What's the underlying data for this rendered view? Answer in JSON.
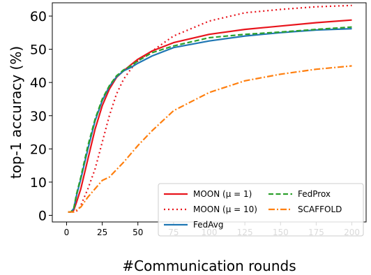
{
  "chart_data": {
    "type": "line",
    "xlabel": "#Communication rounds",
    "ylabel": "top-1 accuracy (%)",
    "xlim": [
      -10,
      210
    ],
    "ylim": [
      -2,
      64
    ],
    "xticks": [
      0,
      25,
      50,
      75,
      100,
      125,
      150,
      175,
      200
    ],
    "yticks": [
      0,
      10,
      20,
      30,
      40,
      50,
      60
    ],
    "legend_position": "lower-right",
    "grid": false,
    "series": [
      {
        "name": "MOON (μ = 1)",
        "color": "#e8141c",
        "style": "solid",
        "x": [
          1,
          3,
          5,
          7,
          10,
          15,
          20,
          25,
          30,
          35,
          40,
          45,
          50,
          60,
          75,
          100,
          125,
          150,
          175,
          200
        ],
        "y": [
          1,
          1,
          1.5,
          4,
          8,
          17,
          26,
          33,
          38,
          41.5,
          43.5,
          45.3,
          47,
          49.5,
          52,
          54.5,
          56,
          57,
          58,
          58.8
        ]
      },
      {
        "name": "MOON (μ = 10)",
        "color": "#e8141c",
        "style": "dotted",
        "x": [
          1,
          5,
          8,
          10,
          15,
          20,
          25,
          30,
          35,
          40,
          45,
          50,
          60,
          75,
          100,
          125,
          150,
          175,
          200
        ],
        "y": [
          1,
          1,
          1.5,
          3,
          8,
          14,
          22,
          30,
          36.5,
          41,
          44,
          46.5,
          49.5,
          54,
          58.5,
          61,
          62,
          62.8,
          63.2
        ]
      },
      {
        "name": "FedAvg",
        "color": "#1f77b4",
        "style": "solid",
        "x": [
          1,
          3,
          5,
          7,
          10,
          15,
          20,
          25,
          30,
          35,
          40,
          45,
          50,
          60,
          75,
          100,
          125,
          150,
          175,
          200
        ],
        "y": [
          1,
          1,
          2,
          6,
          11,
          20,
          28.5,
          34.5,
          38.8,
          41.7,
          43.5,
          44.5,
          45.8,
          48,
          50.5,
          52.5,
          54,
          55,
          55.8,
          56.2
        ]
      },
      {
        "name": "FedProx",
        "color": "#2ca02c",
        "style": "dashed",
        "x": [
          1,
          3,
          5,
          7,
          10,
          15,
          20,
          25,
          30,
          35,
          40,
          45,
          50,
          60,
          75,
          100,
          125,
          150,
          175,
          200
        ],
        "y": [
          1,
          1,
          2,
          6.5,
          11.5,
          21,
          29,
          35,
          39,
          42,
          43.8,
          45,
          46.5,
          49,
          51,
          53.5,
          54.5,
          55.2,
          56,
          56.7
        ]
      },
      {
        "name": "SCAFFOLD",
        "color": "#ff7f0e",
        "style": "dashdot",
        "x": [
          1,
          5,
          10,
          15,
          20,
          25,
          30,
          40,
          50,
          60,
          75,
          100,
          125,
          150,
          175,
          200
        ],
        "y": [
          1,
          1,
          2.5,
          5.5,
          8,
          10.5,
          11.5,
          16,
          21,
          25.5,
          31.5,
          37,
          40.5,
          42.5,
          44,
          45
        ]
      }
    ],
    "legend_entries": [
      "MOON (μ = 1)",
      "FedProx",
      "MOON (μ = 10)",
      "SCAFFOLD",
      "FedAvg"
    ]
  }
}
